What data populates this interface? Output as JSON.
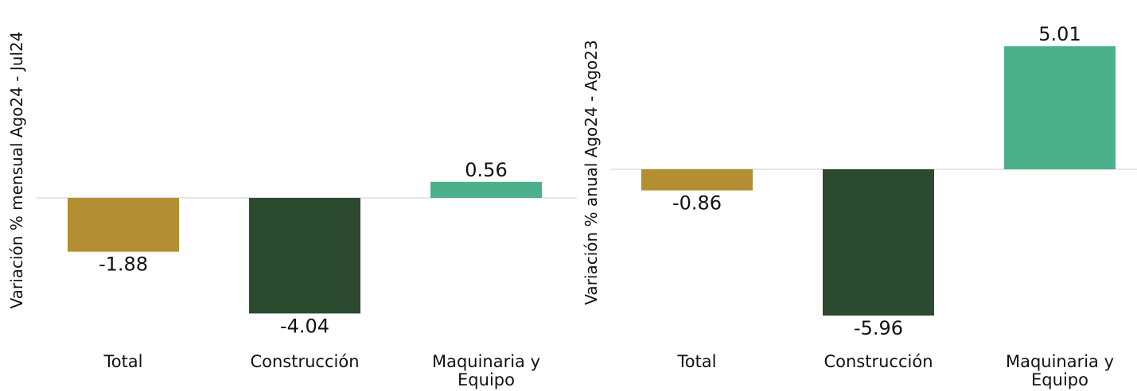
{
  "chart_data": [
    {
      "type": "bar",
      "ylabel": "Variación % mensual Ago24 - Jul24",
      "categories": [
        "Total",
        "Construcción",
        "Maquinaria y Equipo"
      ],
      "values": [
        -1.88,
        -4.04,
        0.56
      ],
      "value_labels": [
        "-1.88",
        "-4.04",
        "0.56"
      ],
      "colors": [
        "#B38E32",
        "#2C4A2F",
        "#4CB08B"
      ]
    },
    {
      "type": "bar",
      "ylabel": "Variación % anual Ago24 - Ago23",
      "categories": [
        "Total",
        "Construcción",
        "Maquinaria y Equipo"
      ],
      "values": [
        -0.86,
        -5.96,
        5.01
      ],
      "value_labels": [
        "-0.86",
        "-5.96",
        "5.01"
      ],
      "colors": [
        "#B38E32",
        "#2C4A2F",
        "#4CB08B"
      ]
    }
  ]
}
